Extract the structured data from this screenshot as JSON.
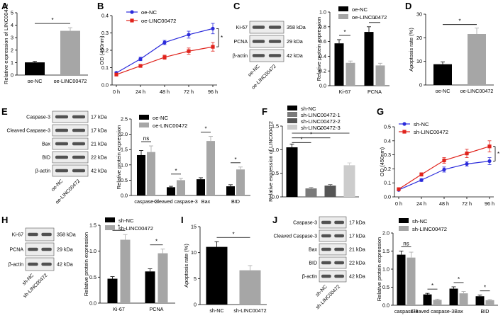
{
  "panels": {
    "A": {
      "label": "A",
      "chart_data": {
        "type": "bar",
        "title": "",
        "xlabel": "",
        "ylabel": "Relative expression of LINC00472",
        "ylim": [
          0,
          5
        ],
        "yticks": [
          0,
          1,
          2,
          3,
          4,
          5
        ],
        "categories": [
          "oe-NC",
          "oe-LINC00472"
        ],
        "values": [
          1.02,
          3.55
        ],
        "errors": [
          0.08,
          0.25
        ],
        "colors": [
          "#000000",
          "#a6a6a6"
        ],
        "sig": [
          "*"
        ]
      }
    },
    "B": {
      "label": "B",
      "chart_data": {
        "type": "line",
        "title": "",
        "xlabel": "",
        "ylabel": "OD (450nm)",
        "ylim": [
          0,
          0.4
        ],
        "yticks": [
          "0.0",
          "0.1",
          "0.2",
          "0.3",
          "0.4"
        ],
        "x": [
          "0 h",
          "24 h",
          "48 h",
          "72 h",
          "96 h"
        ],
        "series": [
          {
            "name": "oe-NC",
            "color": "#2b2bdb",
            "marker": "circle",
            "values": [
              0.07,
              0.15,
              0.245,
              0.29,
              0.325
            ],
            "errors": [
              0.006,
              0.01,
              0.012,
              0.02,
              0.03
            ]
          },
          {
            "name": "oe-LINC00472",
            "color": "#e0231c",
            "marker": "square",
            "values": [
              0.06,
              0.11,
              0.16,
              0.195,
              0.22
            ],
            "errors": [
              0.005,
              0.008,
              0.012,
              0.018,
              0.025
            ]
          }
        ],
        "sig": [
          "*"
        ]
      }
    },
    "C": {
      "label": "C",
      "chart_data": {
        "type": "bar",
        "title": "",
        "xlabel": "",
        "ylabel": "Relative protein expression",
        "ylim": [
          0,
          1.0
        ],
        "yticks": [
          "0.0",
          "0.2",
          "0.4",
          "0.6",
          "0.8",
          "1.0"
        ],
        "categories": [
          "Ki-67",
          "PCNA"
        ],
        "series": [
          {
            "name": "oe-NC",
            "color": "#000000",
            "values": [
              0.575,
              0.73
            ],
            "errors": [
              0.05,
              0.07
            ]
          },
          {
            "name": "oe-LINC00472",
            "color": "#a6a6a6",
            "values": [
              0.31,
              0.275
            ],
            "errors": [
              0.025,
              0.03
            ]
          }
        ],
        "sig": [
          "*",
          "*"
        ]
      },
      "blot": {
        "rows": [
          {
            "name": "Ki-67",
            "kda": "358 kDa"
          },
          {
            "name": "PCNA",
            "kda": "29 kDa"
          },
          {
            "name": "β-actin",
            "kda": "42 kDa"
          }
        ],
        "lanes": [
          "oe-NC",
          "oe-LINC00472"
        ]
      }
    },
    "D": {
      "label": "D",
      "chart_data": {
        "type": "bar",
        "title": "",
        "xlabel": "",
        "ylabel": "Apoptosis rate (%)",
        "ylim": [
          0,
          30
        ],
        "yticks": [
          0,
          10,
          20,
          30
        ],
        "categories": [
          "oe-NC",
          "oe-LINC00472"
        ],
        "values": [
          8.8,
          21.6
        ],
        "errors": [
          1.0,
          2.5
        ],
        "colors": [
          "#000000",
          "#a6a6a6"
        ],
        "sig": [
          "*"
        ]
      }
    },
    "E": {
      "label": "E",
      "chart_data": {
        "type": "bar",
        "title": "",
        "xlabel": "",
        "ylabel": "Relative protein expression",
        "ylim": [
          0,
          2.5
        ],
        "yticks": [
          "0.0",
          "0.5",
          "1.0",
          "1.5",
          "2.0",
          "2.5"
        ],
        "categories": [
          "caspase-3",
          "Cleaved caspase-3",
          "Bax",
          "BID"
        ],
        "series": [
          {
            "name": "oe-NC",
            "color": "#000000",
            "values": [
              1.32,
              0.27,
              0.53,
              0.3
            ],
            "errors": [
              0.15,
              0.03,
              0.05,
              0.05
            ]
          },
          {
            "name": "oe-LINC00472",
            "color": "#a6a6a6",
            "values": [
              1.42,
              0.5,
              1.78,
              0.85
            ],
            "errors": [
              0.2,
              0.06,
              0.15,
              0.08
            ]
          }
        ],
        "sig": [
          "ns",
          "*",
          "*",
          "*"
        ]
      },
      "blot": {
        "rows": [
          {
            "name": "Caspase-3",
            "kda": "17 kDa"
          },
          {
            "name": "Cleaved Caspase-3",
            "kda": "17 kDa"
          },
          {
            "name": "Bax",
            "kda": "21 kDa"
          },
          {
            "name": "BID",
            "kda": "22 kDa"
          },
          {
            "name": "β-actin",
            "kda": "42 kDa"
          }
        ],
        "lanes": [
          "oe-NC",
          "oe-LINC00472"
        ]
      }
    },
    "F": {
      "label": "F",
      "chart_data": {
        "type": "bar",
        "title": "",
        "xlabel": "",
        "ylabel": "Relative expression of LINC00472",
        "ylim": [
          0,
          1.5
        ],
        "yticks": [
          "0.0",
          "0.5",
          "1.0",
          "1.5"
        ],
        "categories": [
          "sh-NC",
          "sh-LINC00472-1",
          "sh-LINC00472-2",
          "sh-LINC00472-3"
        ],
        "values": [
          1.05,
          0.18,
          0.24,
          0.67
        ],
        "errors": [
          0.07,
          0.02,
          0.02,
          0.05
        ],
        "colors": [
          "#000000",
          "#7a7a7a",
          "#555555",
          "#cccccc"
        ],
        "sig": [
          "*",
          "*",
          "*"
        ]
      }
    },
    "G": {
      "label": "G",
      "chart_data": {
        "type": "line",
        "title": "",
        "xlabel": "",
        "ylabel": "OD (450nm)",
        "ylim": [
          0,
          0.5
        ],
        "yticks": [
          "0.0",
          "0.1",
          "0.2",
          "0.3",
          "0.4",
          "0.5"
        ],
        "x": [
          "0 h",
          "24 h",
          "48 h",
          "72 h",
          "96 h"
        ],
        "series": [
          {
            "name": "sh-NC",
            "color": "#2b2bdb",
            "marker": "circle",
            "values": [
              0.05,
              0.12,
              0.195,
              0.235,
              0.255
            ],
            "errors": [
              0.005,
              0.01,
              0.018,
              0.015,
              0.025
            ]
          },
          {
            "name": "sh-LINC00472",
            "color": "#e0231c",
            "marker": "square",
            "values": [
              0.055,
              0.16,
              0.26,
              0.31,
              0.36
            ],
            "errors": [
              0.005,
              0.012,
              0.02,
              0.03,
              0.04
            ]
          }
        ],
        "sig": [
          "*"
        ]
      }
    },
    "H": {
      "label": "H",
      "chart_data": {
        "type": "bar",
        "title": "",
        "xlabel": "",
        "ylabel": "Relative protein expression",
        "ylim": [
          0,
          1.5
        ],
        "yticks": [
          "0.0",
          "0.5",
          "1.0",
          "1.5"
        ],
        "categories": [
          "Ki-67",
          "PCNA"
        ],
        "series": [
          {
            "name": "sh-NC",
            "color": "#000000",
            "values": [
              0.47,
              0.61
            ],
            "errors": [
              0.04,
              0.05
            ]
          },
          {
            "name": "sh-LINC00472",
            "color": "#a6a6a6",
            "values": [
              1.22,
              0.96
            ],
            "errors": [
              0.1,
              0.08
            ]
          }
        ],
        "sig": [
          "*",
          "*"
        ]
      },
      "blot": {
        "rows": [
          {
            "name": "Ki-67",
            "kda": "358 kDa"
          },
          {
            "name": "PCNA",
            "kda": "29 kDa"
          },
          {
            "name": "β-actin",
            "kda": "42 kDa"
          }
        ],
        "lanes": [
          "sh-NC",
          "sh-LINC00472"
        ]
      }
    },
    "I": {
      "label": "I",
      "chart_data": {
        "type": "bar",
        "title": "",
        "xlabel": "",
        "ylabel": "Apoptosis rate (%)",
        "ylim": [
          0,
          15
        ],
        "yticks": [
          0,
          5,
          10,
          15
        ],
        "categories": [
          "sh-NC",
          "sh-LINC00472"
        ],
        "values": [
          11.1,
          6.6
        ],
        "errors": [
          1.0,
          0.9
        ],
        "colors": [
          "#000000",
          "#a6a6a6"
        ],
        "sig": [
          "*"
        ]
      }
    },
    "J": {
      "label": "J",
      "chart_data": {
        "type": "bar",
        "title": "",
        "xlabel": "",
        "ylabel": "Relative protein expression",
        "ylim": [
          0,
          2.0
        ],
        "yticks": [
          "0.0",
          "0.5",
          "1.0",
          "1.5",
          "2.0"
        ],
        "categories": [
          "caspase-3",
          "Cleaved caspase-3",
          "Bax",
          "BID"
        ],
        "series": [
          {
            "name": "sh-NC",
            "color": "#000000",
            "values": [
              1.4,
              0.3,
              0.46,
              0.25
            ],
            "errors": [
              0.1,
              0.03,
              0.05,
              0.03
            ]
          },
          {
            "name": "sh-LINC00472",
            "color": "#a6a6a6",
            "values": [
              1.32,
              0.15,
              0.33,
              0.14
            ],
            "errors": [
              0.15,
              0.02,
              0.05,
              0.02
            ]
          }
        ],
        "sig": [
          "ns",
          "*",
          "*",
          "*"
        ]
      },
      "blot": {
        "rows": [
          {
            "name": "Caspase-3",
            "kda": "17 kDa"
          },
          {
            "name": "Cleaved Caspase-3",
            "kda": "17 kDa"
          },
          {
            "name": "Bax",
            "kda": "21 kDa"
          },
          {
            "name": "BID",
            "kda": "22 kDa"
          },
          {
            "name": "β-actin",
            "kda": "42 kDa"
          }
        ],
        "lanes": [
          "sh-NC",
          "sh-LINC00472"
        ]
      }
    }
  }
}
